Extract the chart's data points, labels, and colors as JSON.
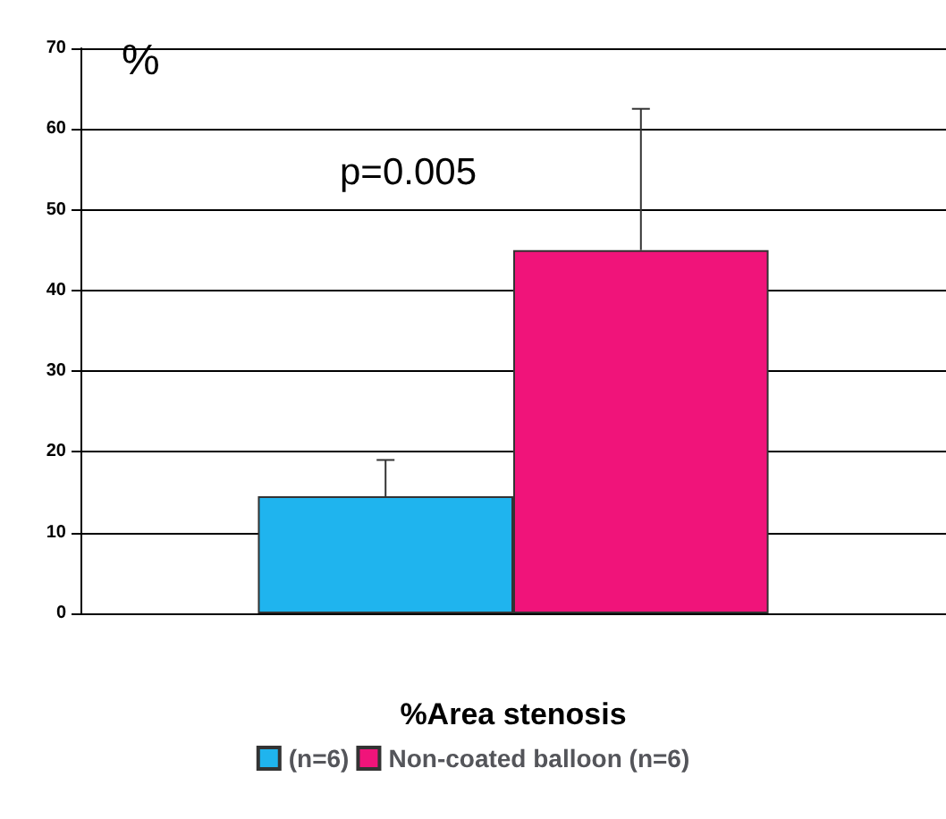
{
  "chart_data": {
    "type": "bar",
    "xlabel": "%Area stenosis",
    "ylabel": "%",
    "categories": [
      null
    ],
    "series": [
      {
        "name": "(n=6)",
        "color": "#1fb4ee",
        "values": [
          14.5
        ],
        "errors": [
          [
            14.5,
            19
          ]
        ]
      },
      {
        "name": "Non-coated balloon (n=6)",
        "color": "#f0147a",
        "values": [
          45
        ],
        "errors": [
          [
            45,
            62.5
          ]
        ]
      }
    ],
    "ylim": [
      0,
      70
    ],
    "yticks": [
      0,
      10,
      20,
      30,
      40,
      50,
      60,
      70
    ],
    "grid": "y",
    "legend": "bottom",
    "annotations": [
      "p=0.005"
    ]
  }
}
